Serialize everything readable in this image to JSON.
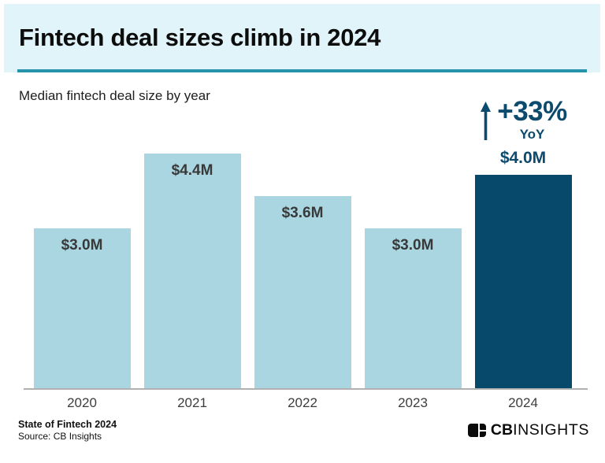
{
  "chart_data": {
    "type": "bar",
    "title": "Fintech deal sizes climb in 2024",
    "subtitle": "Median fintech deal size by year",
    "categories": [
      "2020",
      "2021",
      "2022",
      "2023",
      "2024"
    ],
    "values": [
      3.0,
      4.4,
      3.6,
      3.0,
      4.0
    ],
    "value_labels": [
      "$3.0M",
      "$4.4M",
      "$3.6M",
      "$3.0M",
      "$4.0M"
    ],
    "highlight_index": 4,
    "ylim": [
      0,
      4.4
    ],
    "grid": false,
    "legend": false,
    "annotation": {
      "delta": "+33%",
      "period": "YoY",
      "icon": "up-arrow-icon"
    }
  },
  "colors": {
    "header_bg": "#e1f4f9",
    "rule_teal": "#2793ab",
    "bar_light": "#a9d6e0",
    "bar_dark": "#06496b",
    "annotation_blue": "#0c4a6e",
    "axis_gray": "#b1b1b1"
  },
  "footer": {
    "report": "State of Fintech 2024",
    "source": "Source: CB Insights",
    "brand_bold": "CB",
    "brand_light": "INSIGHTS"
  }
}
